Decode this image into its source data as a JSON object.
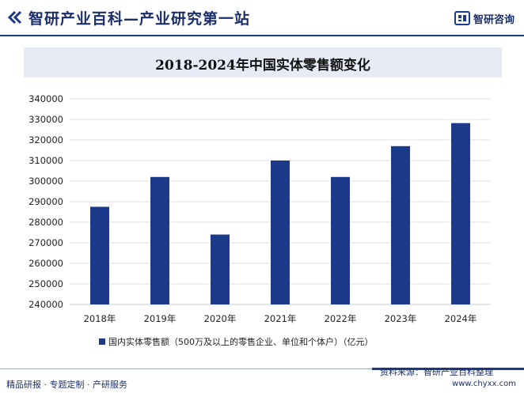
{
  "header": {
    "title": "智研产业百科—产业研究第一站",
    "logo_text": "智研咨询"
  },
  "colors": {
    "brand": "#1b2f6b",
    "bar": "#1b3a8a",
    "title_band": "#e6ebf6"
  },
  "chart_data": {
    "type": "bar",
    "title": "2018-2024年中国实体零售额变化",
    "categories": [
      "2018年",
      "2019年",
      "2020年",
      "2021年",
      "2022年",
      "2023年",
      "2024年"
    ],
    "series": [
      {
        "name": "国内实体零售额（500万及以上的零售企业、单位和个体户）（亿元）",
        "values": [
          287500,
          302000,
          274000,
          310000,
          302000,
          317000,
          328200
        ]
      }
    ],
    "ylim": [
      240000,
      340000
    ],
    "yticks": [
      240000,
      250000,
      260000,
      270000,
      280000,
      290000,
      300000,
      310000,
      320000,
      330000,
      340000
    ],
    "grid": true,
    "legend_position": "bottom"
  },
  "footer": {
    "tags": "精品研报 · 专题定制 · 产研服务",
    "source": "资料来源：智研产业百科整理",
    "url": "www.chyxx.com"
  }
}
